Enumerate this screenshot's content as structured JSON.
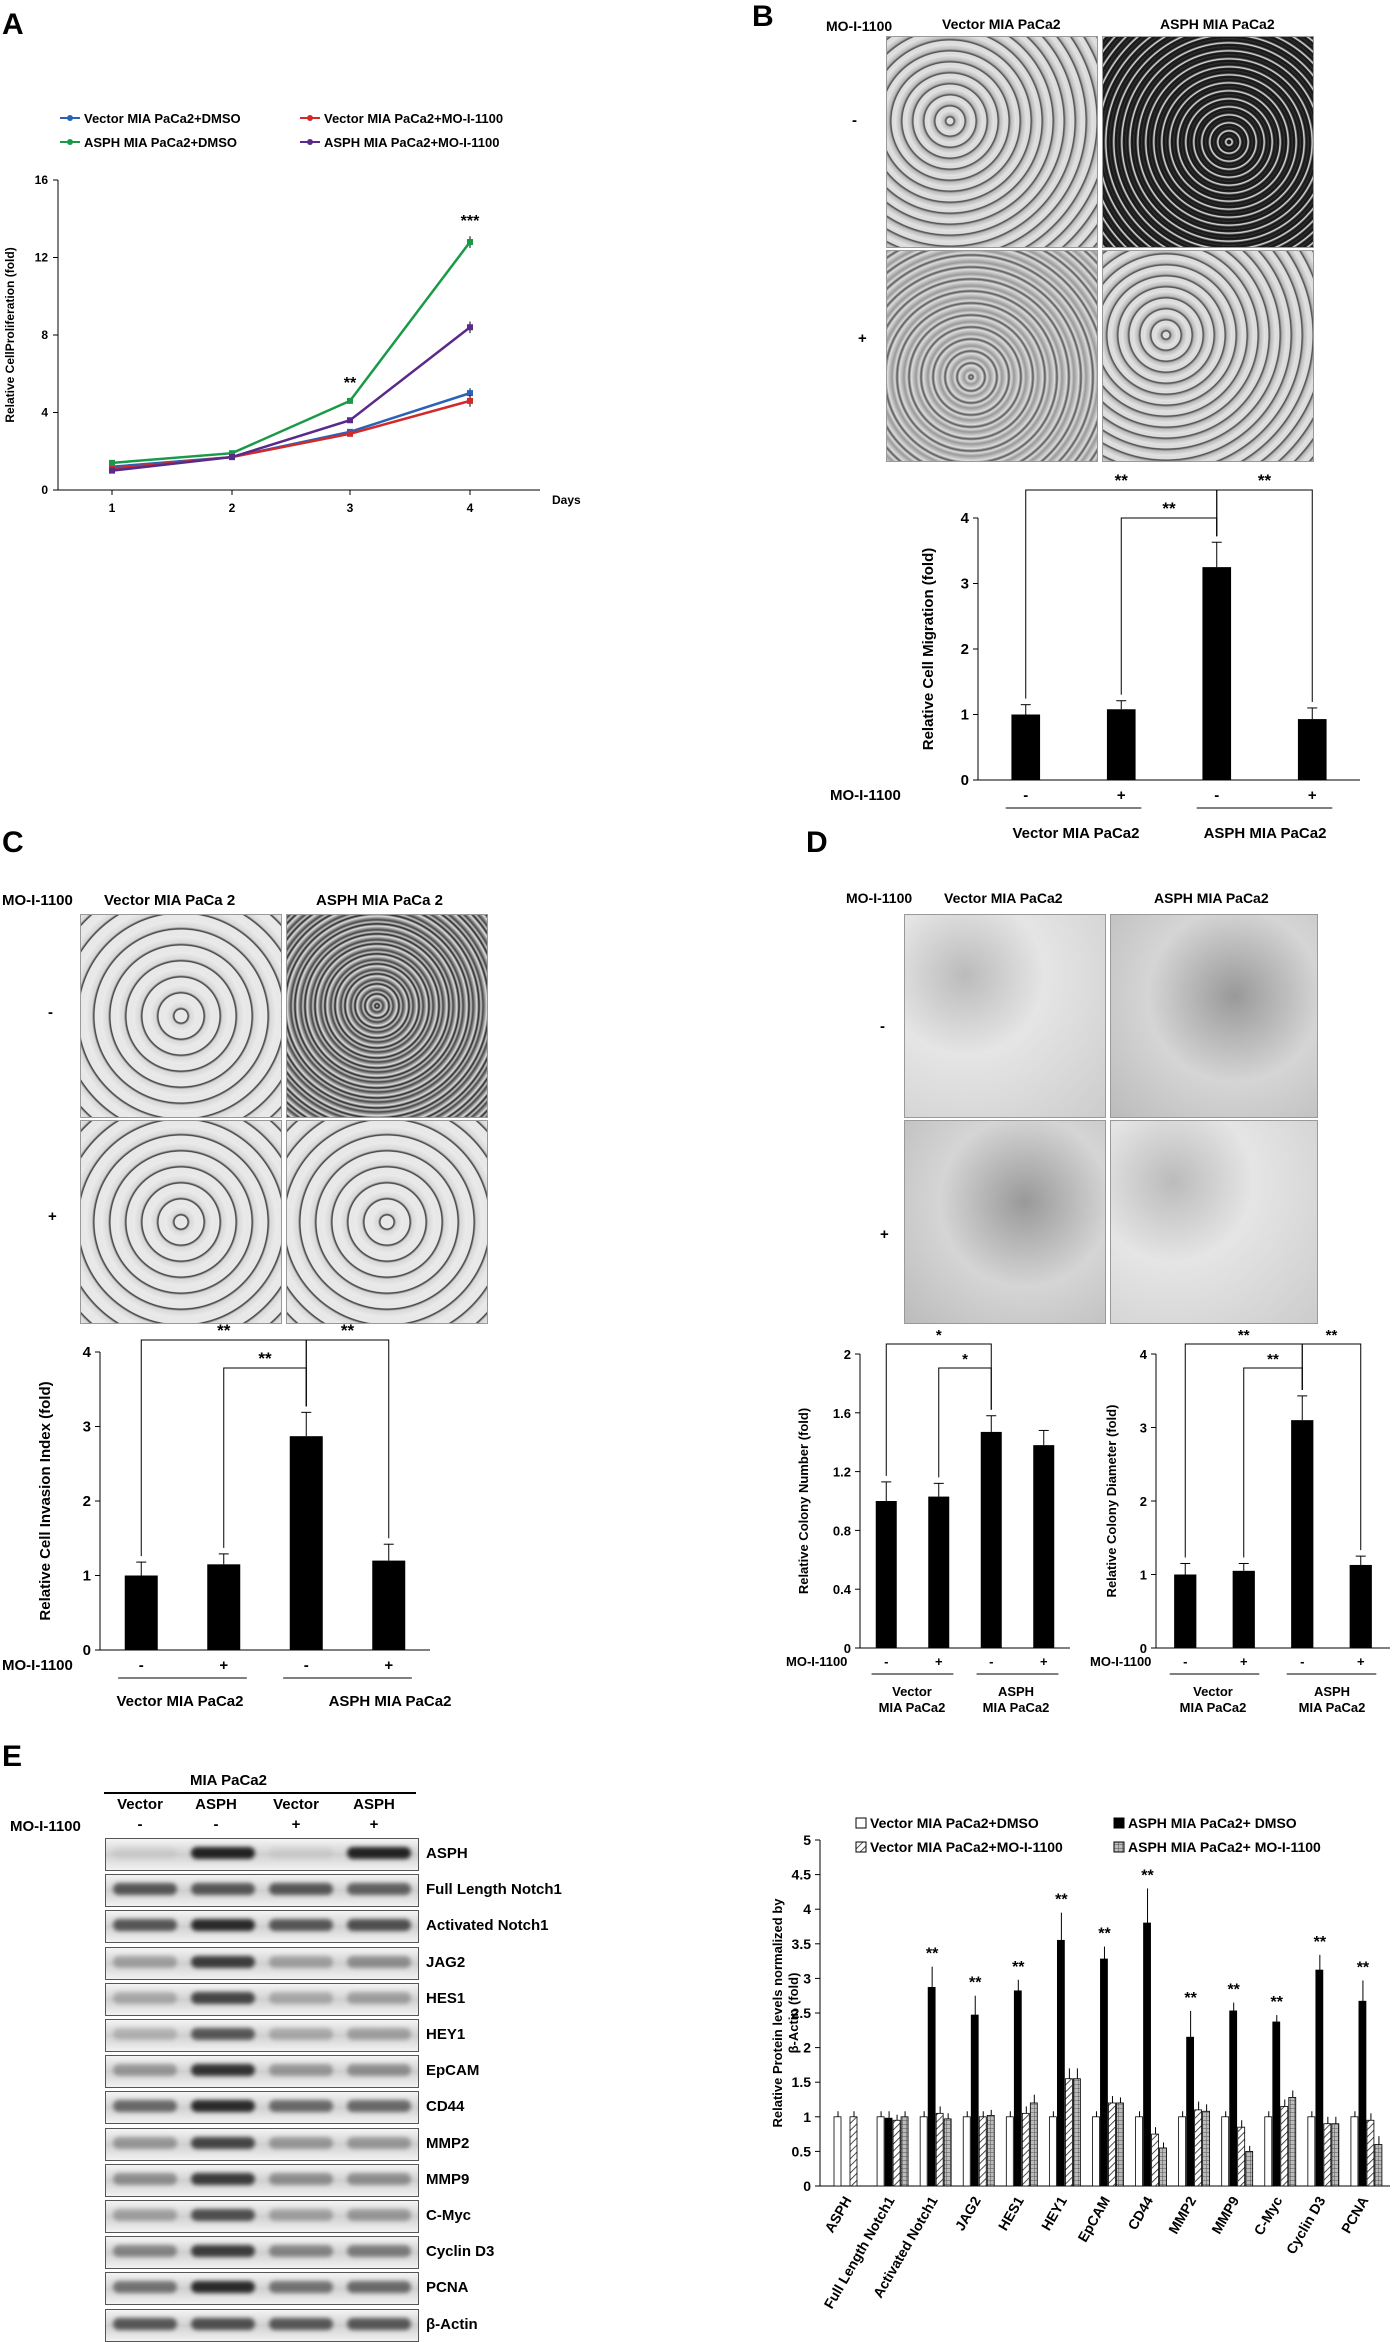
{
  "panels": {
    "A": "A",
    "B": "B",
    "C": "C",
    "D": "D",
    "E": "E"
  },
  "treatment_label": "MO-I-1100",
  "signs": {
    "minus": "-",
    "plus": "+"
  },
  "panel_b": {
    "col_headers": [
      "Vector  MIA PaCa2",
      "ASPH  MIA PaCa2"
    ],
    "group_labels": [
      "Vector  MIA PaCa2",
      "ASPH  MIA PaCa2"
    ]
  },
  "panel_c": {
    "col_headers": [
      "Vector  MIA PaCa 2",
      "ASPH  MIA PaCa 2"
    ],
    "group_labels": [
      "Vector  MIA PaCa2",
      "ASPH  MIA PaCa2"
    ]
  },
  "panel_d": {
    "col_headers": [
      "Vector  MIA PaCa2",
      "ASPH  MIA PaCa2"
    ],
    "group_labels": [
      "Vector",
      "MIA PaCa2",
      "ASPH",
      "MIA PaCa2"
    ]
  },
  "panel_e": {
    "blot_title": "MIA PaCa2",
    "lane_labels": [
      "Vector",
      "ASPH",
      "Vector",
      "ASPH"
    ],
    "lane_treatment": [
      "-",
      "-",
      "+",
      "+"
    ],
    "proteins": [
      "ASPH",
      "Full Length Notch1",
      "Activated Notch1",
      "JAG2",
      "HES1",
      "HEY1",
      "EpCAM",
      "CD44",
      "MMP2",
      "MMP9",
      "C-Myc",
      "Cyclin D3",
      "PCNA",
      "β-Actin"
    ],
    "band_intensity": [
      [
        0.05,
        1.0,
        0.05,
        1.0
      ],
      [
        0.7,
        0.7,
        0.7,
        0.65
      ],
      [
        0.7,
        0.95,
        0.7,
        0.75
      ],
      [
        0.3,
        0.85,
        0.3,
        0.4
      ],
      [
        0.25,
        0.8,
        0.25,
        0.3
      ],
      [
        0.2,
        0.7,
        0.25,
        0.3
      ],
      [
        0.35,
        0.9,
        0.35,
        0.4
      ],
      [
        0.6,
        0.95,
        0.6,
        0.6
      ],
      [
        0.35,
        0.8,
        0.35,
        0.35
      ],
      [
        0.4,
        0.85,
        0.4,
        0.4
      ],
      [
        0.3,
        0.75,
        0.3,
        0.35
      ],
      [
        0.45,
        0.85,
        0.45,
        0.5
      ],
      [
        0.55,
        0.95,
        0.55,
        0.6
      ],
      [
        0.7,
        0.75,
        0.7,
        0.7
      ]
    ]
  },
  "chart_data": [
    {
      "id": "A",
      "type": "line",
      "ylabel": "Relative CellProliferation  (fold)",
      "xlabel": "Days",
      "x": [
        1,
        2,
        3,
        4
      ],
      "ylim": [
        0,
        16
      ],
      "yticks": [
        0,
        4,
        8,
        12,
        16
      ],
      "series": [
        {
          "name": "Vector MIA PaCa2+DMSO",
          "color": "#2a62b5",
          "values": [
            1.2,
            1.7,
            3.0,
            5.0
          ],
          "err": [
            0.1,
            0.1,
            0.1,
            0.25
          ]
        },
        {
          "name": "Vector MIA PaCa2+MO-I-1100",
          "color": "#d22a2a",
          "values": [
            1.1,
            1.7,
            2.9,
            4.6
          ],
          "err": [
            0.1,
            0.1,
            0.1,
            0.3
          ]
        },
        {
          "name": "ASPH MIA PaCa2+DMSO",
          "color": "#1a9a48",
          "values": [
            1.4,
            1.9,
            4.6,
            12.8
          ],
          "err": [
            0.1,
            0.1,
            0.15,
            0.3
          ]
        },
        {
          "name": "ASPH MIA PaCa2+MO-I-1100",
          "color": "#5a2a8a",
          "values": [
            1.0,
            1.7,
            3.6,
            8.4
          ],
          "err": [
            0.1,
            0.1,
            0.1,
            0.3
          ]
        }
      ],
      "annotations": [
        {
          "x": 3,
          "text": "**"
        },
        {
          "x": 4,
          "text": "***"
        }
      ]
    },
    {
      "id": "B",
      "type": "bar",
      "ylabel": "Relative Cell Migration (fold)",
      "ylim": [
        0,
        4
      ],
      "yticks": [
        0,
        1,
        2,
        3,
        4
      ],
      "categories": [
        "-",
        "+",
        "-",
        "+"
      ],
      "values": [
        1.0,
        1.08,
        3.25,
        0.93
      ],
      "err": [
        0.15,
        0.13,
        0.38,
        0.17
      ],
      "brackets": [
        {
          "from": 0,
          "to": 2,
          "text": "**"
        },
        {
          "from": 1,
          "to": 2,
          "text": "**"
        },
        {
          "from": 2,
          "to": 3,
          "text": "**"
        }
      ]
    },
    {
      "id": "C",
      "type": "bar",
      "ylabel": "Relative Cell Invasion Index (fold)",
      "ylim": [
        0,
        4
      ],
      "yticks": [
        0,
        1,
        2,
        3,
        4
      ],
      "categories": [
        "-",
        "+",
        "-",
        "+"
      ],
      "values": [
        1.0,
        1.15,
        2.87,
        1.2
      ],
      "err": [
        0.18,
        0.14,
        0.32,
        0.22
      ],
      "brackets": [
        {
          "from": 0,
          "to": 2,
          "text": "**"
        },
        {
          "from": 1,
          "to": 2,
          "text": "**"
        },
        {
          "from": 2,
          "to": 3,
          "text": "**"
        }
      ]
    },
    {
      "id": "D1",
      "type": "bar",
      "ylabel": "Relative Colony Number (fold)",
      "ylim": [
        0,
        2
      ],
      "yticks": [
        0,
        0.4,
        0.8,
        1.2,
        1.6,
        2
      ],
      "categories": [
        "-",
        "+",
        "-",
        "+"
      ],
      "values": [
        1.0,
        1.03,
        1.47,
        1.38
      ],
      "err": [
        0.13,
        0.09,
        0.11,
        0.1
      ],
      "brackets": [
        {
          "from": 0,
          "to": 2,
          "text": "*"
        },
        {
          "from": 1,
          "to": 2,
          "text": "*"
        }
      ]
    },
    {
      "id": "D2",
      "type": "bar",
      "ylabel": "Relative Colony Diameter (fold)",
      "ylim": [
        0,
        4
      ],
      "yticks": [
        0,
        1,
        2,
        3,
        4
      ],
      "categories": [
        "-",
        "+",
        "-",
        "+"
      ],
      "values": [
        1.0,
        1.05,
        3.1,
        1.13
      ],
      "err": [
        0.15,
        0.1,
        0.33,
        0.12
      ],
      "brackets": [
        {
          "from": 0,
          "to": 2,
          "text": "**"
        },
        {
          "from": 1,
          "to": 2,
          "text": "**"
        },
        {
          "from": 2,
          "to": 3,
          "text": "**"
        }
      ]
    },
    {
      "id": "E",
      "type": "bar",
      "ylabel": "Relative Protein levels normalized by β-Actin (fold)",
      "ylim": [
        0,
        5
      ],
      "yticks": [
        0,
        0.5,
        1,
        1.5,
        2,
        2.5,
        3,
        3.5,
        4,
        4.5,
        5
      ],
      "categories": [
        "ASPH",
        "Full Length Notch1",
        "Activated Notch1",
        "JAG2",
        "HES1",
        "HEY1",
        "EpCAM",
        "CD44",
        "MMP2",
        "MMP9",
        "C-Myc",
        "Cyclin D3",
        "PCNA"
      ],
      "series": [
        {
          "name": "Vector MIA PaCa2+DMSO",
          "fill": "white",
          "values": [
            1.0,
            1.0,
            1.0,
            1.0,
            1.0,
            1.0,
            1.0,
            1.0,
            1.0,
            1.0,
            1.0,
            1.0,
            1.0
          ],
          "err": [
            0.08,
            0.08,
            0.08,
            0.08,
            0.08,
            0.08,
            0.08,
            0.08,
            0.08,
            0.08,
            0.08,
            0.08,
            0.08
          ]
        },
        {
          "name": "ASPH MIA PaCa2+ DMSO",
          "fill": "black",
          "values": [
            null,
            0.98,
            2.87,
            2.47,
            2.82,
            3.55,
            3.28,
            3.8,
            2.15,
            2.53,
            2.37,
            3.12,
            2.67
          ],
          "err": [
            0,
            0.1,
            0.3,
            0.28,
            0.16,
            0.4,
            0.18,
            0.5,
            0.38,
            0.12,
            0.1,
            0.22,
            0.3
          ]
        },
        {
          "name": "Vector MIA PaCa2+MO-I-1100",
          "fill": "diag",
          "values": [
            1.0,
            0.95,
            1.05,
            1.0,
            1.05,
            1.55,
            1.2,
            0.75,
            1.1,
            0.85,
            1.15,
            0.9,
            0.95
          ],
          "err": [
            0.08,
            0.08,
            0.1,
            0.08,
            0.1,
            0.15,
            0.1,
            0.1,
            0.12,
            0.1,
            0.1,
            0.1,
            0.1
          ]
        },
        {
          "name": "ASPH MIA PaCa2+ MO-I-1100",
          "fill": "grid",
          "values": [
            null,
            1.0,
            0.97,
            1.02,
            1.2,
            1.55,
            1.2,
            0.55,
            1.08,
            0.5,
            1.28,
            0.9,
            0.6
          ],
          "err": [
            0,
            0.08,
            0.08,
            0.08,
            0.12,
            0.15,
            0.08,
            0.08,
            0.1,
            0.08,
            0.1,
            0.1,
            0.12
          ]
        }
      ],
      "annotations": [
        {
          "index": 2,
          "text": "**"
        },
        {
          "index": 3,
          "text": "**"
        },
        {
          "index": 4,
          "text": "**"
        },
        {
          "index": 5,
          "text": "**"
        },
        {
          "index": 6,
          "text": "**"
        },
        {
          "index": 7,
          "text": "**"
        },
        {
          "index": 8,
          "text": "**"
        },
        {
          "index": 9,
          "text": "**"
        },
        {
          "index": 10,
          "text": "**"
        },
        {
          "index": 11,
          "text": "**"
        },
        {
          "index": 12,
          "text": "**"
        }
      ]
    }
  ]
}
